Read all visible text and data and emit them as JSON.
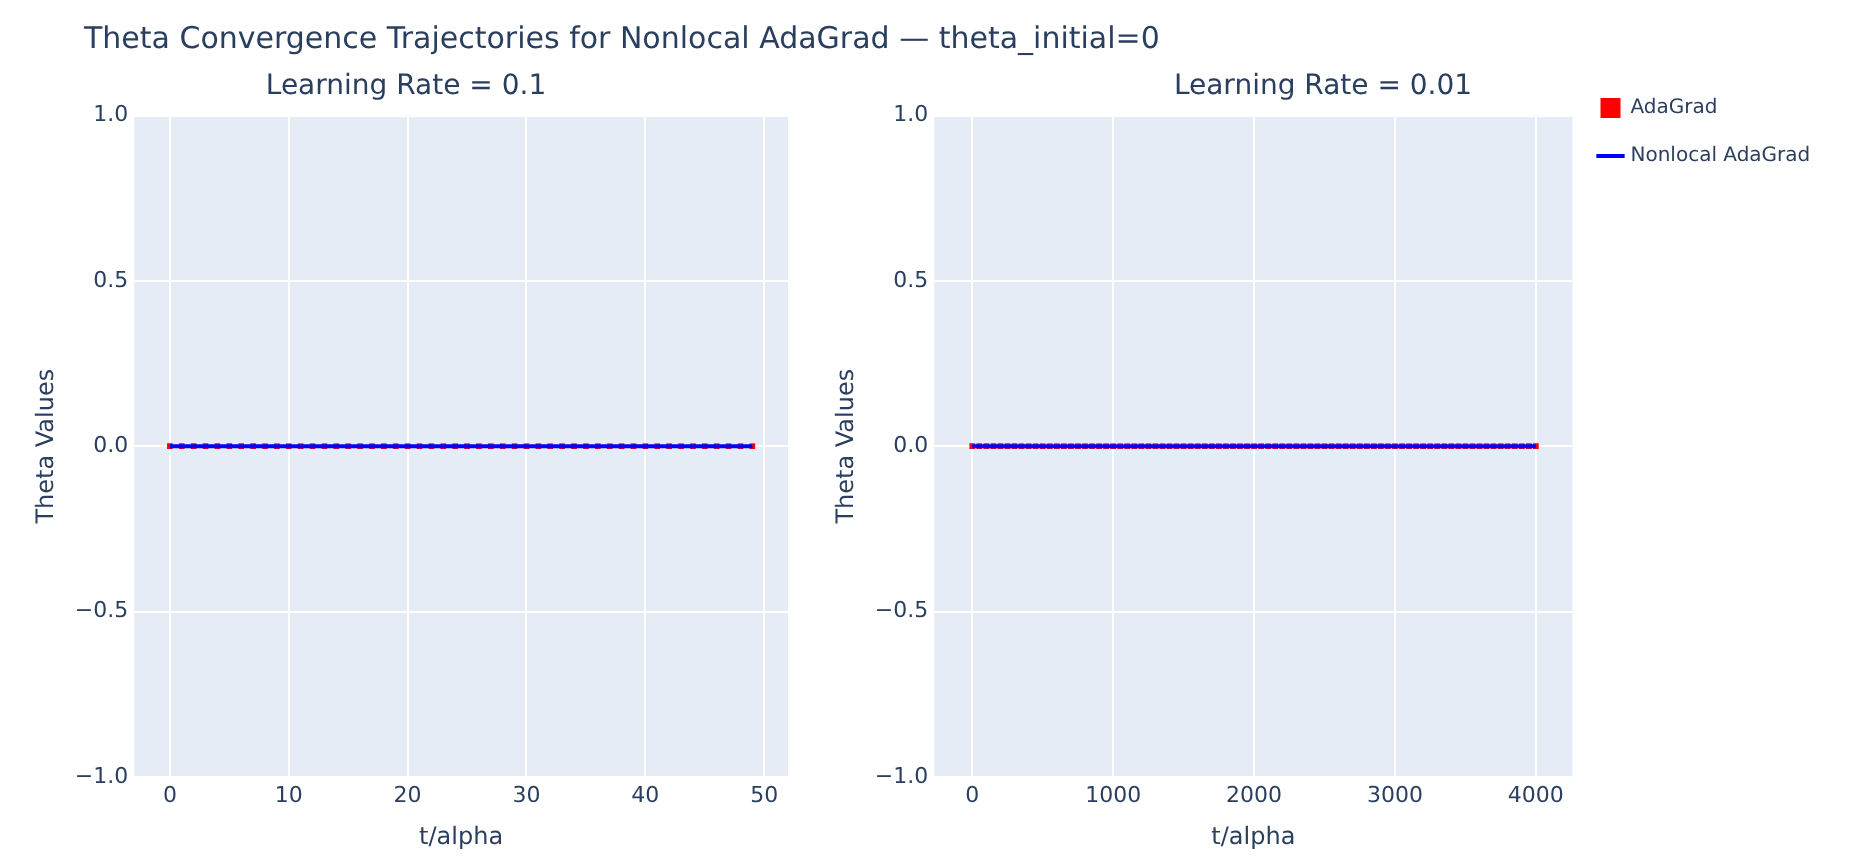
{
  "chart_data": [
    {
      "type": "line",
      "title": "Learning Rate = 0.1",
      "xlabel": "t/alpha",
      "ylabel": "Theta Values",
      "annotations": [
        "Theta Convergence Trajectories for Nonlocal AdaGrad — theta_initial=0"
      ],
      "x": [
        0,
        1,
        2,
        3,
        4,
        5,
        6,
        7,
        8,
        9,
        10,
        11,
        12,
        13,
        14,
        15,
        16,
        17,
        18,
        19,
        20,
        21,
        22,
        23,
        24,
        25,
        26,
        27,
        28,
        29,
        30,
        31,
        32,
        33,
        34,
        35,
        36,
        37,
        38,
        39,
        40,
        41,
        42,
        43,
        44,
        45,
        46,
        47,
        48,
        49
      ],
      "series": [
        {
          "type": "scatter",
          "color": "#ff0000",
          "marker": "square",
          "values": [
            0,
            0,
            0,
            0,
            0,
            0,
            0,
            0,
            0,
            0,
            0,
            0,
            0,
            0,
            0,
            0,
            0,
            0,
            0,
            0,
            0,
            0,
            0,
            0,
            0,
            0,
            0,
            0,
            0,
            0,
            0,
            0,
            0,
            0,
            0,
            0,
            0,
            0,
            0,
            0,
            0,
            0,
            0,
            0,
            0,
            0,
            0,
            0,
            0,
            0
          ]
        },
        {
          "color": "#0000ff",
          "values": [
            0,
            0,
            0,
            0,
            0,
            0,
            0,
            0,
            0,
            0,
            0,
            0,
            0,
            0,
            0,
            0,
            0,
            0,
            0,
            0,
            0,
            0,
            0,
            0,
            0,
            0,
            0,
            0,
            0,
            0,
            0,
            0,
            0,
            0,
            0,
            0,
            0,
            0,
            0,
            0,
            0,
            0,
            0,
            0,
            0,
            0,
            0,
            0,
            0,
            0
          ]
        }
      ],
      "xlim": [
        -3,
        52
      ],
      "xticks": [
        0,
        10,
        20,
        30,
        40,
        50
      ],
      "ylim": [
        -1,
        1
      ],
      "yticks": [
        {
          "value": -1,
          "label": "−1.0"
        },
        {
          "value": -0.5,
          "label": "−0.5"
        },
        {
          "value": 0,
          "label": "0.0"
        },
        {
          "value": 0.5,
          "label": "0.5"
        },
        {
          "value": 1,
          "label": "1.0"
        }
      ],
      "grid": true
    },
    {
      "type": "line",
      "title": "Learning Rate = 0.01",
      "xlabel": "t/alpha",
      "ylabel": "Theta Values",
      "x": [
        0,
        50,
        100,
        150,
        200,
        250,
        300,
        350,
        400,
        450,
        500,
        550,
        600,
        650,
        700,
        750,
        800,
        850,
        900,
        950,
        1000,
        1050,
        1100,
        1150,
        1200,
        1250,
        1300,
        1350,
        1400,
        1450,
        1500,
        1550,
        1600,
        1650,
        1700,
        1750,
        1800,
        1850,
        1900,
        1950,
        2000,
        2050,
        2100,
        2150,
        2200,
        2250,
        2300,
        2350,
        2400,
        2450,
        2500,
        2550,
        2600,
        2650,
        2700,
        2750,
        2800,
        2850,
        2900,
        2950,
        3000,
        3050,
        3100,
        3150,
        3200,
        3250,
        3300,
        3350,
        3400,
        3450,
        3500,
        3550,
        3600,
        3650,
        3700,
        3750,
        3800,
        3850,
        3900,
        3950,
        4000
      ],
      "series": [
        {
          "type": "scatter",
          "name": "AdaGrad",
          "color": "#ff0000",
          "marker": "square",
          "values": [
            0,
            0,
            0,
            0,
            0,
            0,
            0,
            0,
            0,
            0,
            0,
            0,
            0,
            0,
            0,
            0,
            0,
            0,
            0,
            0,
            0,
            0,
            0,
            0,
            0,
            0,
            0,
            0,
            0,
            0,
            0,
            0,
            0,
            0,
            0,
            0,
            0,
            0,
            0,
            0,
            0,
            0,
            0,
            0,
            0,
            0,
            0,
            0,
            0,
            0,
            0,
            0,
            0,
            0,
            0,
            0,
            0,
            0,
            0,
            0,
            0,
            0,
            0,
            0,
            0,
            0,
            0,
            0,
            0,
            0,
            0,
            0,
            0,
            0,
            0,
            0,
            0,
            0,
            0,
            0,
            0
          ]
        },
        {
          "name": "Nonlocal AdaGrad",
          "color": "#0000ff",
          "values": [
            0,
            0,
            0,
            0,
            0,
            0,
            0,
            0,
            0,
            0,
            0,
            0,
            0,
            0,
            0,
            0,
            0,
            0,
            0,
            0,
            0,
            0,
            0,
            0,
            0,
            0,
            0,
            0,
            0,
            0,
            0,
            0,
            0,
            0,
            0,
            0,
            0,
            0,
            0,
            0,
            0,
            0,
            0,
            0,
            0,
            0,
            0,
            0,
            0,
            0,
            0,
            0,
            0,
            0,
            0,
            0,
            0,
            0,
            0,
            0,
            0,
            0,
            0,
            0,
            0,
            0,
            0,
            0,
            0,
            0,
            0,
            0,
            0,
            0,
            0,
            0,
            0,
            0,
            0,
            0,
            0
          ]
        }
      ],
      "xlim": [
        -270,
        4260
      ],
      "xticks": [
        0,
        1000,
        2000,
        3000,
        4000
      ],
      "ylim": [
        -1,
        1
      ],
      "yticks": [
        {
          "value": -1,
          "label": "−1.0"
        },
        {
          "value": -0.5,
          "label": "−0.5"
        },
        {
          "value": 0,
          "label": "0.0"
        },
        {
          "value": 0.5,
          "label": "0.5"
        },
        {
          "value": 1,
          "label": "1.0"
        }
      ],
      "grid": true,
      "legend": "top right"
    }
  ]
}
